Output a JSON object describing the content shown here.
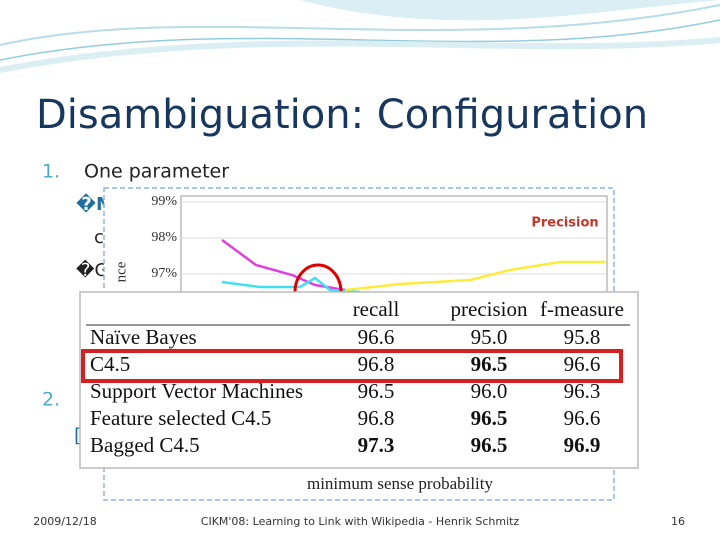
{
  "slide": {
    "title": "Disambiguation: Configuration",
    "list": [
      {
        "marker": "1.",
        "text": "One parameter"
      },
      {
        "marker": "2.",
        "text": ""
      }
    ],
    "sub_bullets": [
      "�M",
      "c",
      "�G"
    ],
    "fragment": "[",
    "chart": {
      "y_label": "nce",
      "yticks": [
        "99%",
        "98%",
        "97%"
      ],
      "legend": "Precision",
      "x_label": "minimum sense probability"
    },
    "table": {
      "header": [
        "",
        "recall",
        "precision",
        "f-measure"
      ],
      "rows": [
        {
          "cells": [
            {
              "text": "Naïve Bayes"
            },
            {
              "text": "96.6"
            },
            {
              "text": "95.0"
            },
            {
              "text": "95.8"
            }
          ]
        },
        {
          "highlight": true,
          "cells": [
            {
              "text": "C4.5"
            },
            {
              "text": "96.8"
            },
            {
              "text": "96.5",
              "bold": true
            },
            {
              "text": "96.6"
            }
          ]
        },
        {
          "cells": [
            {
              "text": "Support Vector Machines"
            },
            {
              "text": "96.5"
            },
            {
              "text": "96.0"
            },
            {
              "text": "96.3"
            }
          ]
        },
        {
          "cells": [
            {
              "text": "Feature selected C4.5"
            },
            {
              "text": "96.8"
            },
            {
              "text": "96.5",
              "bold": true
            },
            {
              "text": "96.6"
            }
          ]
        },
        {
          "cells": [
            {
              "text": "Bagged C4.5"
            },
            {
              "text": "97.3",
              "bold": true
            },
            {
              "text": "96.5",
              "bold": true
            },
            {
              "text": "96.9",
              "bold": true
            }
          ]
        }
      ]
    },
    "footer": {
      "date": "2009/12/18",
      "text": "CIKM'08: Learning to Link with Wikipedia - Henrik Schmitz",
      "page": "16"
    }
  }
}
